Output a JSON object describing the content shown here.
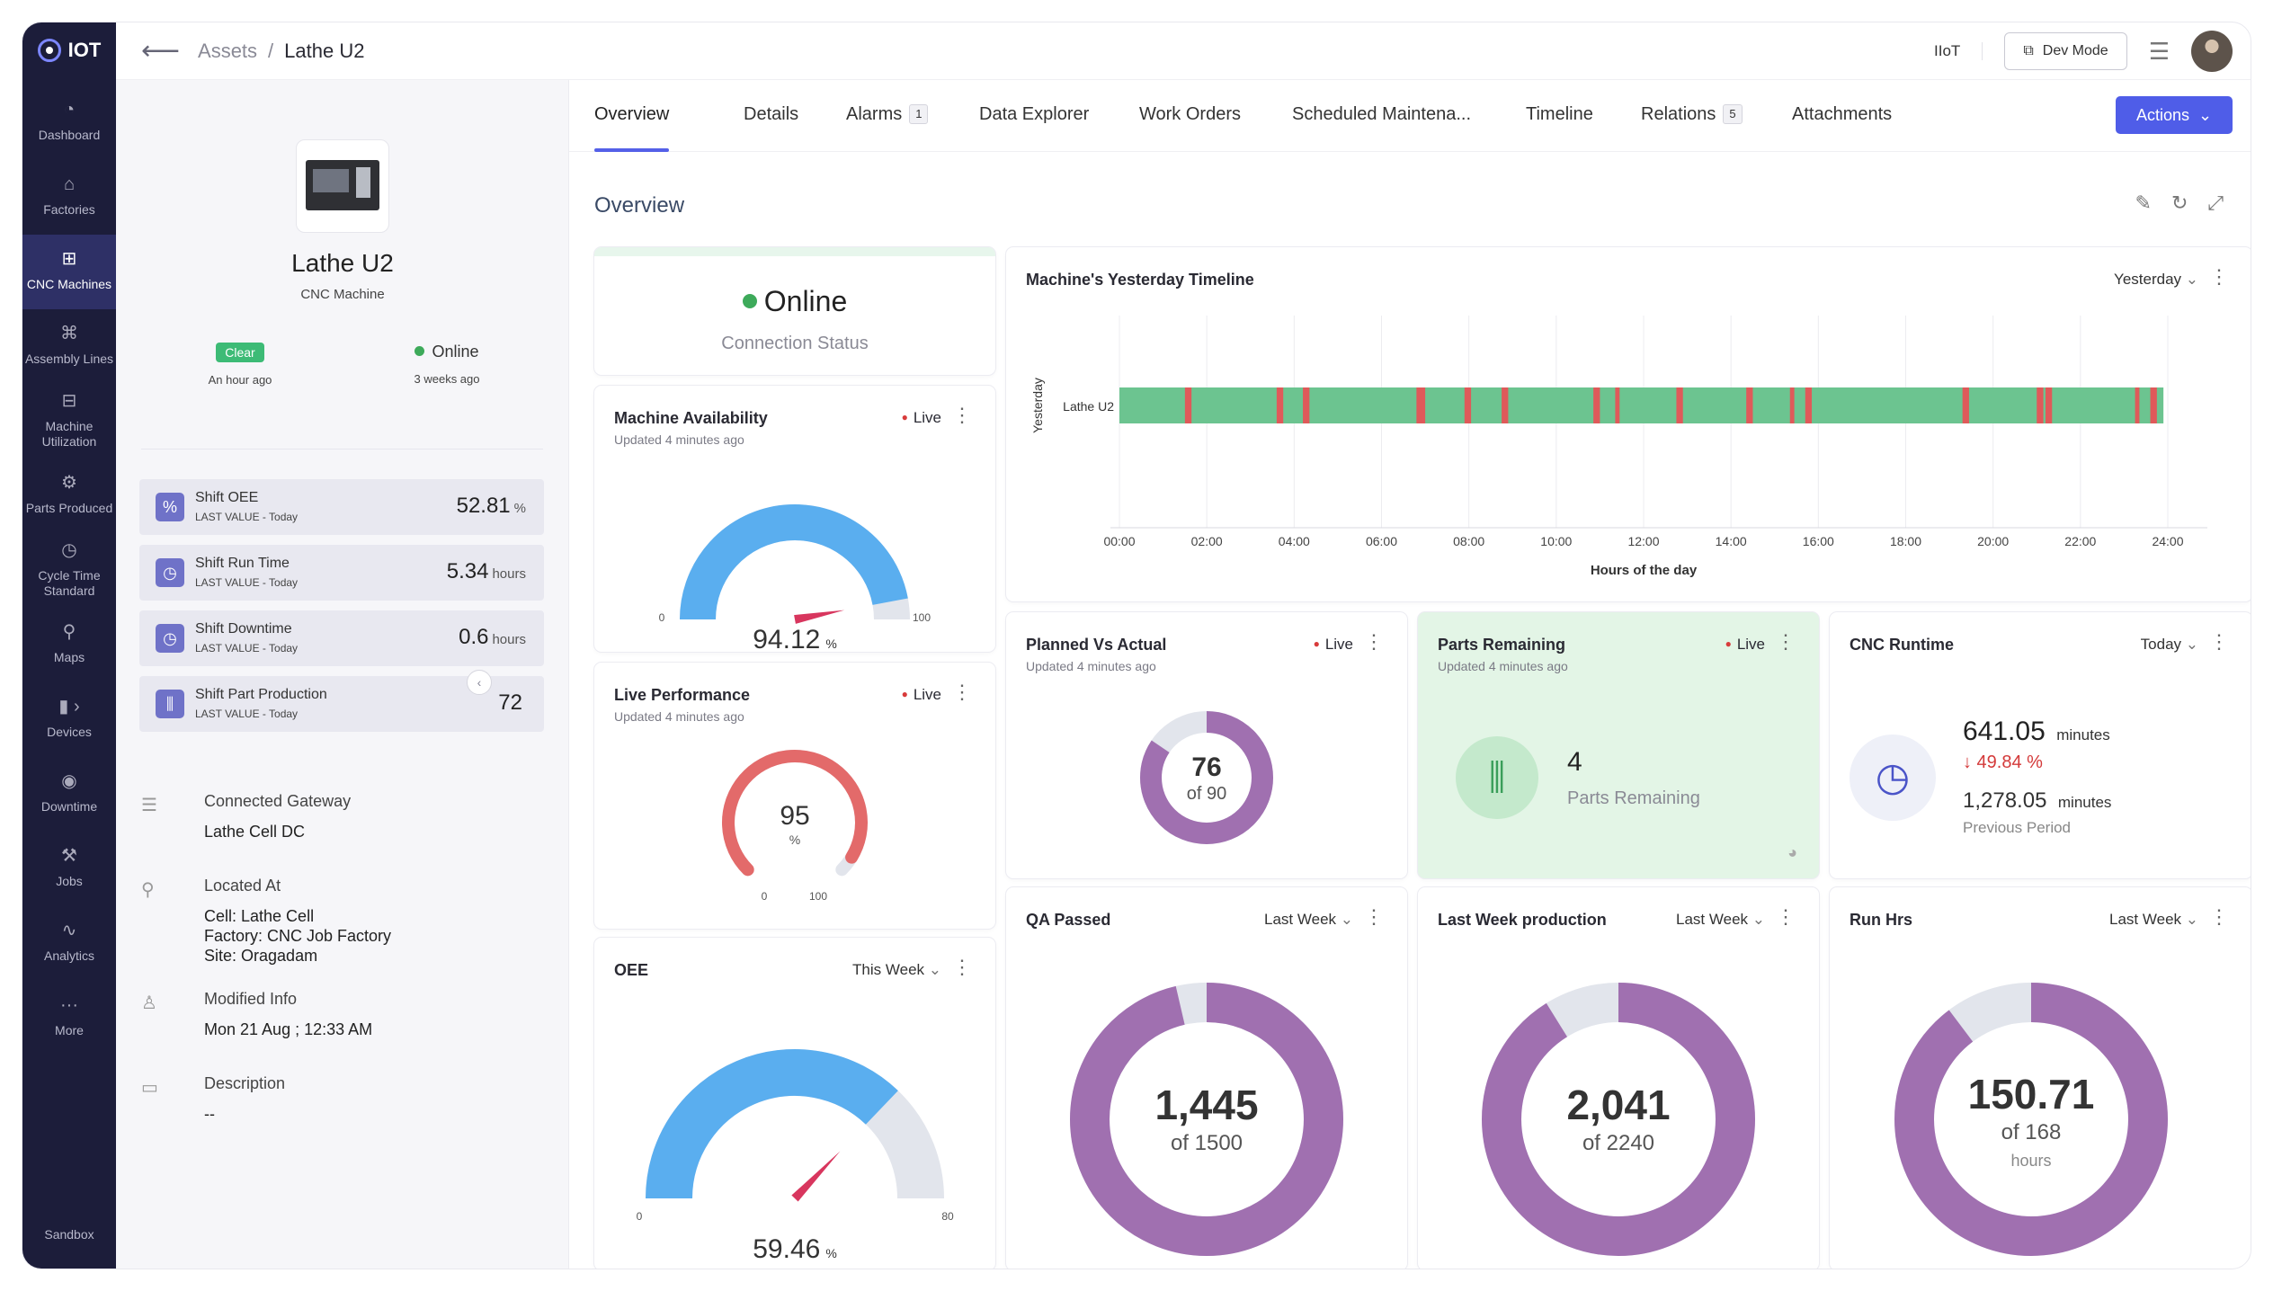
{
  "app": {
    "logo_text": "IOT",
    "sandbox": "Sandbox"
  },
  "nav": [
    {
      "icon": "dashboard-icon",
      "label": "Dashboard"
    },
    {
      "icon": "factory-icon",
      "label": "Factories"
    },
    {
      "icon": "cnc-icon",
      "label": "CNC Machines"
    },
    {
      "icon": "assembly-icon",
      "label": "Assembly Lines"
    },
    {
      "icon": "utilization-icon",
      "label": "Machine Utilization"
    },
    {
      "icon": "gear-icon",
      "label": "Parts Produced"
    },
    {
      "icon": "clock-icon",
      "label": "Cycle Time Standard"
    },
    {
      "icon": "map-pin-icon",
      "label": "Maps"
    },
    {
      "icon": "device-icon",
      "label": "Devices"
    },
    {
      "icon": "downtime-icon",
      "label": "Downtime"
    },
    {
      "icon": "jobs-icon",
      "label": "Jobs"
    },
    {
      "icon": "analytics-icon",
      "label": "Analytics"
    },
    {
      "icon": "more-icon",
      "label": "More"
    }
  ],
  "header": {
    "crumb_parent": "Assets",
    "crumb_sep": "/",
    "crumb_current": "Lathe U2",
    "iiot": "IIoT",
    "dev_mode": "Dev Mode"
  },
  "asset": {
    "name": "Lathe U2",
    "type": "CNC Machine",
    "alarm_badge": "Clear",
    "alarm_time": "An hour ago",
    "status": "Online",
    "status_time": "3 weeks ago"
  },
  "kpis": [
    {
      "title": "Shift OEE",
      "sub": "LAST VALUE - Today",
      "value": "52.81",
      "unit": "%",
      "icon": "%"
    },
    {
      "title": "Shift Run Time",
      "sub": "LAST VALUE - Today",
      "value": "5.34",
      "unit": "hours",
      "icon": "◷"
    },
    {
      "title": "Shift Downtime",
      "sub": "LAST VALUE - Today",
      "value": "0.6",
      "unit": "hours",
      "icon": "◷"
    },
    {
      "title": "Shift Part Production",
      "sub": "LAST VALUE - Today",
      "value": "72",
      "unit": "",
      "icon": "⫼"
    }
  ],
  "info": {
    "gateway_label": "Connected Gateway",
    "gateway_value": "Lathe Cell DC",
    "located_label": "Located At",
    "cell_key": "Cell: ",
    "cell_val": "Lathe Cell",
    "factory_key": "Factory: ",
    "factory_val": "CNC Job Factory",
    "site_key": "Site: ",
    "site_val": "Oragadam",
    "modified_label": "Modified Info",
    "modified_value": "Mon 21 Aug ; 12:33 AM",
    "desc_label": "Description",
    "desc_value": "--"
  },
  "tabs": [
    {
      "label": "Overview",
      "count": ""
    },
    {
      "label": "Details",
      "count": ""
    },
    {
      "label": "Alarms",
      "count": "1"
    },
    {
      "label": "Data Explorer",
      "count": ""
    },
    {
      "label": "Work Orders",
      "count": ""
    },
    {
      "label": "Scheduled Maintenа...",
      "count": ""
    },
    {
      "label": "Timeline",
      "count": ""
    },
    {
      "label": "Relations",
      "count": "5"
    },
    {
      "label": "Attachments",
      "count": ""
    }
  ],
  "actions_label": "Actions",
  "overview_title": "Overview",
  "cards": {
    "connection": {
      "status": "Online",
      "label": "Connection Status"
    },
    "availability": {
      "title": "Machine Availability",
      "updated": "Updated 4 minutes ago",
      "live": "Live"
    },
    "performance": {
      "title": "Live Performance",
      "updated": "Updated 4 minutes ago",
      "live": "Live"
    },
    "oee": {
      "title": "OEE",
      "period": "This Week"
    },
    "timeline": {
      "title": "Machine's Yesterday Timeline",
      "period": "Yesterday"
    },
    "planned": {
      "title": "Planned Vs Actual",
      "updated": "Updated 4 minutes ago",
      "live": "Live"
    },
    "parts": {
      "title": "Parts Remaining",
      "updated": "Updated 4 minutes ago",
      "live": "Live",
      "value": "4",
      "label": "Parts Remaining"
    },
    "runtime": {
      "title": "CNC Runtime",
      "period": "Today",
      "current": "641.05",
      "current_unit": "minutes",
      "change": "↓ 49.84 %",
      "previous": "1,278.05",
      "previous_unit": "minutes",
      "previous_label": "Previous Period"
    },
    "qa": {
      "title": "QA Passed",
      "period": "Last Week"
    },
    "lastweek": {
      "title": "Last Week production",
      "period": "Last Week"
    },
    "runhrs": {
      "title": "Run Hrs",
      "period": "Last Week"
    }
  },
  "chart_data": [
    {
      "id": "availability",
      "type": "gauge",
      "value": 94.12,
      "min": 0,
      "max": 100,
      "unit": "%",
      "value_label": "94.12",
      "min_label": "0",
      "max_label": "100",
      "color": "#5aaeef",
      "track": "#e2e5ec"
    },
    {
      "id": "performance",
      "type": "gauge",
      "value": 95,
      "min": 0,
      "max": 100,
      "unit": "%",
      "value_label": "95",
      "min_label": "0",
      "max_label": "100",
      "color": "#e36a6a",
      "track": "#e2e5ec"
    },
    {
      "id": "oee",
      "type": "gauge",
      "value": 59.46,
      "min": 0,
      "max": 80,
      "unit": "%",
      "value_label": "59.46",
      "min_label": "0",
      "max_label": "80",
      "color": "#5aaeef",
      "track": "#e2e5ec"
    },
    {
      "id": "planned",
      "type": "donut",
      "value": 76,
      "total": 90,
      "value_label": "76",
      "sub_label": "of 90",
      "color": "#a070b0",
      "track": "#e2e5ec"
    },
    {
      "id": "qa",
      "type": "donut",
      "value": 1445,
      "total": 1500,
      "value_label": "1,445",
      "sub_label": "of 1500",
      "color": "#a070b0",
      "track": "#e2e5ec"
    },
    {
      "id": "lastweek",
      "type": "donut",
      "value": 2041,
      "total": 2240,
      "value_label": "2,041",
      "sub_label": "of 2240",
      "color": "#a070b0",
      "track": "#e2e5ec"
    },
    {
      "id": "runhrs",
      "type": "donut",
      "value": 150.71,
      "total": 168,
      "value_label": "150.71",
      "sub_label": "of 168",
      "sub_label2": "hours",
      "color": "#a070b0",
      "track": "#e2e5ec"
    },
    {
      "id": "timeline",
      "type": "timeline",
      "row_label": "Lathe U2",
      "ylabel": "Yesterday",
      "xlabel": "Hours of the day",
      "x_range_hours": [
        0,
        24
      ],
      "ticks": [
        "00:00",
        "02:00",
        "04:00",
        "06:00",
        "08:00",
        "10:00",
        "12:00",
        "14:00",
        "16:00",
        "18:00",
        "20:00",
        "22:00",
        "24:00"
      ],
      "running_color": "#6cc490",
      "down_color": "#df5a5a",
      "running_until_hours": 23.9,
      "down_events_hours": [
        [
          1.5,
          1.65
        ],
        [
          3.6,
          3.75
        ],
        [
          4.2,
          4.35
        ],
        [
          6.8,
          7.0
        ],
        [
          7.9,
          8.05
        ],
        [
          8.75,
          8.9
        ],
        [
          10.85,
          11.0
        ],
        [
          11.35,
          11.45
        ],
        [
          12.75,
          12.9
        ],
        [
          14.35,
          14.5
        ],
        [
          15.35,
          15.45
        ],
        [
          15.7,
          15.85
        ],
        [
          19.3,
          19.45
        ],
        [
          21.0,
          21.15
        ],
        [
          21.2,
          21.35
        ],
        [
          23.25,
          23.35
        ],
        [
          23.6,
          23.75
        ]
      ]
    }
  ]
}
